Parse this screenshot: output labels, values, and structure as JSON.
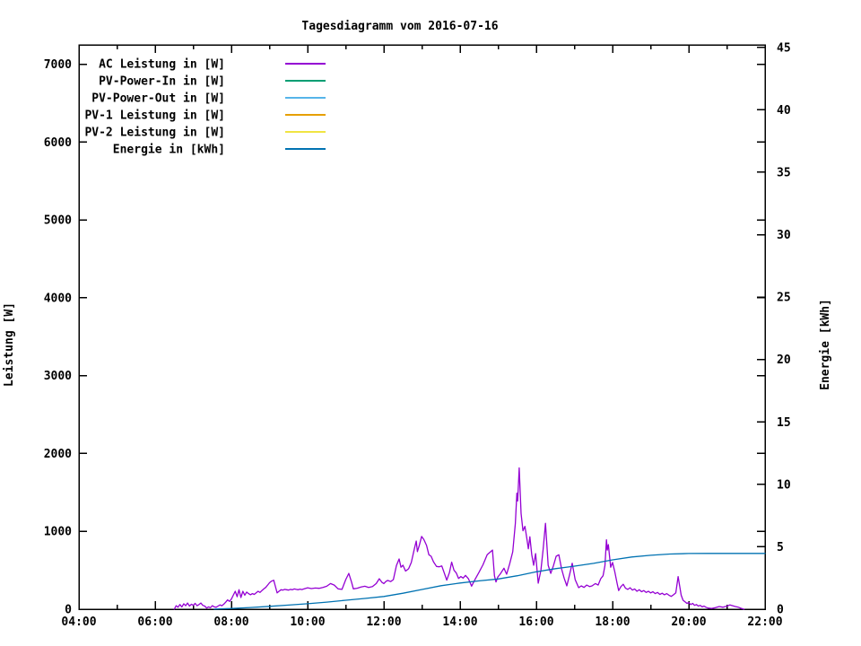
{
  "title": "Tagesdiagramm vom 2016-07-16",
  "legend": {
    "position": "top-left",
    "items": [
      {
        "label": "AC Leistung in [W]",
        "color": "#9400d3"
      },
      {
        "label": "PV-Power-In in [W]",
        "color": "#009e73"
      },
      {
        "label": "PV-Power-Out in [W]",
        "color": "#56b4e9"
      },
      {
        "label": "PV-1 Leistung in [W]",
        "color": "#e69f00"
      },
      {
        "label": "PV-2 Leistung in [W]",
        "color": "#f0e442"
      },
      {
        "label": "Energie in [kWh]",
        "color": "#0072b2"
      }
    ]
  },
  "chart_data": {
    "type": "line",
    "title": "Tagesdiagramm vom 2016-07-16",
    "grid": false,
    "x_axis": {
      "range_hours": [
        4,
        22
      ],
      "major_tick_hours": [
        4,
        6,
        8,
        10,
        12,
        14,
        16,
        18,
        20,
        22
      ],
      "major_tick_labels": [
        "04:00",
        "06:00",
        "08:00",
        "10:00",
        "12:00",
        "14:00",
        "16:00",
        "18:00",
        "20:00",
        "22:00"
      ],
      "minor_tick_hours": [
        5,
        7,
        9,
        11,
        13,
        15,
        17,
        19,
        21
      ]
    },
    "y1_axis": {
      "label": "Leistung [W]",
      "range": [
        0,
        7250
      ],
      "ticks": [
        0,
        1000,
        2000,
        3000,
        4000,
        5000,
        6000,
        7000
      ]
    },
    "y2_axis": {
      "label": "Energie [kWh]",
      "range": [
        0,
        45.2
      ],
      "ticks": [
        0,
        5,
        10,
        15,
        20,
        25,
        30,
        35,
        40,
        45
      ]
    },
    "series": [
      {
        "name": "AC Leistung in [W]",
        "color": "#9400d3",
        "axis": "y1",
        "points": [
          [
            6.5,
            0
          ],
          [
            6.55,
            45
          ],
          [
            6.6,
            25
          ],
          [
            6.65,
            60
          ],
          [
            6.7,
            30
          ],
          [
            6.75,
            70
          ],
          [
            6.8,
            45
          ],
          [
            6.85,
            80
          ],
          [
            6.9,
            40
          ],
          [
            6.95,
            65
          ],
          [
            7.0,
            50
          ],
          [
            7.05,
            75
          ],
          [
            7.1,
            45
          ],
          [
            7.15,
            60
          ],
          [
            7.2,
            80
          ],
          [
            7.25,
            50
          ],
          [
            7.3,
            40
          ],
          [
            7.35,
            15
          ],
          [
            7.4,
            30
          ],
          [
            7.45,
            20
          ],
          [
            7.5,
            45
          ],
          [
            7.55,
            30
          ],
          [
            7.6,
            25
          ],
          [
            7.65,
            40
          ],
          [
            7.7,
            55
          ],
          [
            7.75,
            45
          ],
          [
            7.8,
            65
          ],
          [
            7.85,
            90
          ],
          [
            7.9,
            120
          ],
          [
            7.95,
            100
          ],
          [
            8.0,
            130
          ],
          [
            8.05,
            180
          ],
          [
            8.1,
            230
          ],
          [
            8.15,
            160
          ],
          [
            8.2,
            250
          ],
          [
            8.25,
            150
          ],
          [
            8.3,
            230
          ],
          [
            8.35,
            180
          ],
          [
            8.4,
            220
          ],
          [
            8.45,
            200
          ],
          [
            8.5,
            185
          ],
          [
            8.55,
            200
          ],
          [
            8.6,
            190
          ],
          [
            8.65,
            210
          ],
          [
            8.7,
            230
          ],
          [
            8.75,
            215
          ],
          [
            8.8,
            240
          ],
          [
            8.85,
            260
          ],
          [
            8.9,
            280
          ],
          [
            8.95,
            310
          ],
          [
            9.0,
            340
          ],
          [
            9.05,
            360
          ],
          [
            9.11,
            372
          ],
          [
            9.15,
            300
          ],
          [
            9.2,
            210
          ],
          [
            9.25,
            230
          ],
          [
            9.3,
            250
          ],
          [
            9.35,
            245
          ],
          [
            9.4,
            255
          ],
          [
            9.45,
            250
          ],
          [
            9.5,
            245
          ],
          [
            9.55,
            255
          ],
          [
            9.6,
            250
          ],
          [
            9.65,
            260
          ],
          [
            9.7,
            255
          ],
          [
            9.75,
            250
          ],
          [
            9.8,
            258
          ],
          [
            9.85,
            252
          ],
          [
            9.9,
            260
          ],
          [
            9.95,
            268
          ],
          [
            10.0,
            275
          ],
          [
            10.1,
            265
          ],
          [
            10.2,
            272
          ],
          [
            10.3,
            268
          ],
          [
            10.4,
            280
          ],
          [
            10.5,
            295
          ],
          [
            10.6,
            330
          ],
          [
            10.7,
            310
          ],
          [
            10.8,
            262
          ],
          [
            10.9,
            255
          ],
          [
            11.0,
            380
          ],
          [
            11.08,
            460
          ],
          [
            11.15,
            350
          ],
          [
            11.2,
            262
          ],
          [
            11.3,
            270
          ],
          [
            11.4,
            285
          ],
          [
            11.5,
            295
          ],
          [
            11.6,
            280
          ],
          [
            11.7,
            290
          ],
          [
            11.8,
            330
          ],
          [
            11.88,
            392
          ],
          [
            11.95,
            345
          ],
          [
            12.0,
            330
          ],
          [
            12.05,
            355
          ],
          [
            12.1,
            370
          ],
          [
            12.18,
            355
          ],
          [
            12.25,
            380
          ],
          [
            12.33,
            560
          ],
          [
            12.4,
            645
          ],
          [
            12.45,
            540
          ],
          [
            12.5,
            565
          ],
          [
            12.57,
            490
          ],
          [
            12.65,
            520
          ],
          [
            12.72,
            600
          ],
          [
            12.8,
            776
          ],
          [
            12.85,
            876
          ],
          [
            12.88,
            740
          ],
          [
            12.93,
            820
          ],
          [
            12.99,
            935
          ],
          [
            13.05,
            895
          ],
          [
            13.12,
            820
          ],
          [
            13.18,
            700
          ],
          [
            13.24,
            680
          ],
          [
            13.3,
            610
          ],
          [
            13.38,
            550
          ],
          [
            13.45,
            545
          ],
          [
            13.52,
            555
          ],
          [
            13.58,
            470
          ],
          [
            13.65,
            373
          ],
          [
            13.72,
            470
          ],
          [
            13.78,
            605
          ],
          [
            13.84,
            500
          ],
          [
            13.9,
            465
          ],
          [
            13.96,
            395
          ],
          [
            14.02,
            420
          ],
          [
            14.08,
            400
          ],
          [
            14.14,
            435
          ],
          [
            14.22,
            390
          ],
          [
            14.3,
            296
          ],
          [
            14.4,
            390
          ],
          [
            14.5,
            480
          ],
          [
            14.6,
            570
          ],
          [
            14.71,
            700
          ],
          [
            14.85,
            760
          ],
          [
            14.9,
            430
          ],
          [
            14.94,
            350
          ],
          [
            14.99,
            415
          ],
          [
            15.05,
            450
          ],
          [
            15.15,
            527
          ],
          [
            15.22,
            450
          ],
          [
            15.3,
            584
          ],
          [
            15.38,
            738
          ],
          [
            15.45,
            1100
          ],
          [
            15.49,
            1490
          ],
          [
            15.51,
            1390
          ],
          [
            15.55,
            1815
          ],
          [
            15.6,
            1230
          ],
          [
            15.65,
            1007
          ],
          [
            15.7,
            1064
          ],
          [
            15.75,
            911
          ],
          [
            15.79,
            776
          ],
          [
            15.83,
            930
          ],
          [
            15.88,
            700
          ],
          [
            15.93,
            565
          ],
          [
            15.98,
            715
          ],
          [
            16.05,
            334
          ],
          [
            16.12,
            500
          ],
          [
            16.18,
            770
          ],
          [
            16.24,
            1103
          ],
          [
            16.28,
            800
          ],
          [
            16.31,
            565
          ],
          [
            16.38,
            460
          ],
          [
            16.45,
            560
          ],
          [
            16.52,
            680
          ],
          [
            16.59,
            700
          ],
          [
            16.66,
            520
          ],
          [
            16.73,
            400
          ],
          [
            16.8,
            300
          ],
          [
            16.87,
            440
          ],
          [
            16.94,
            590
          ],
          [
            17.02,
            380
          ],
          [
            17.11,
            277
          ],
          [
            17.18,
            300
          ],
          [
            17.25,
            280
          ],
          [
            17.32,
            310
          ],
          [
            17.4,
            290
          ],
          [
            17.46,
            300
          ],
          [
            17.55,
            330
          ],
          [
            17.62,
            310
          ],
          [
            17.69,
            392
          ],
          [
            17.75,
            430
          ],
          [
            17.8,
            560
          ],
          [
            17.84,
            891
          ],
          [
            17.86,
            760
          ],
          [
            17.89,
            830
          ],
          [
            17.95,
            540
          ],
          [
            18.0,
            600
          ],
          [
            18.06,
            480
          ],
          [
            18.12,
            330
          ],
          [
            18.16,
            240
          ],
          [
            18.22,
            290
          ],
          [
            18.28,
            320
          ],
          [
            18.34,
            270
          ],
          [
            18.4,
            255
          ],
          [
            18.46,
            275
          ],
          [
            18.52,
            245
          ],
          [
            18.58,
            260
          ],
          [
            18.64,
            230
          ],
          [
            18.7,
            250
          ],
          [
            18.76,
            225
          ],
          [
            18.82,
            240
          ],
          [
            18.88,
            215
          ],
          [
            18.94,
            230
          ],
          [
            19.0,
            210
          ],
          [
            19.06,
            225
          ],
          [
            19.12,
            200
          ],
          [
            19.18,
            215
          ],
          [
            19.24,
            190
          ],
          [
            19.3,
            205
          ],
          [
            19.36,
            185
          ],
          [
            19.42,
            200
          ],
          [
            19.48,
            180
          ],
          [
            19.54,
            165
          ],
          [
            19.6,
            185
          ],
          [
            19.66,
            210
          ],
          [
            19.72,
            420
          ],
          [
            19.76,
            300
          ],
          [
            19.8,
            180
          ],
          [
            19.85,
            115
          ],
          [
            19.9,
            95
          ],
          [
            19.95,
            75
          ],
          [
            20.0,
            85
          ],
          [
            20.05,
            60
          ],
          [
            20.1,
            75
          ],
          [
            20.15,
            50
          ],
          [
            20.2,
            60
          ],
          [
            20.25,
            40
          ],
          [
            20.3,
            50
          ],
          [
            20.35,
            30
          ],
          [
            20.4,
            40
          ],
          [
            20.45,
            25
          ],
          [
            20.5,
            15
          ],
          [
            20.6,
            10
          ],
          [
            20.7,
            20
          ],
          [
            20.8,
            35
          ],
          [
            20.9,
            25
          ],
          [
            21.0,
            40
          ],
          [
            21.08,
            55
          ],
          [
            21.15,
            45
          ],
          [
            21.22,
            35
          ],
          [
            21.3,
            25
          ],
          [
            21.38,
            10
          ],
          [
            21.45,
            0
          ]
        ]
      },
      {
        "name": "PV-Power-In in [W]",
        "color": "#009e73",
        "axis": "y1",
        "points": []
      },
      {
        "name": "PV-Power-Out in [W]",
        "color": "#56b4e9",
        "axis": "y1",
        "points": []
      },
      {
        "name": "PV-1 Leistung in [W]",
        "color": "#e69f00",
        "axis": "y1",
        "points": []
      },
      {
        "name": "PV-2 Leistung in [W]",
        "color": "#f0e442",
        "axis": "y1",
        "points": []
      },
      {
        "name": "Energie in [kWh]",
        "color": "#0072b2",
        "axis": "y2",
        "points": [
          [
            7.55,
            0.01
          ],
          [
            8.0,
            0.06
          ],
          [
            8.5,
            0.14
          ],
          [
            9.0,
            0.23
          ],
          [
            9.5,
            0.33
          ],
          [
            10.0,
            0.44
          ],
          [
            10.5,
            0.57
          ],
          [
            11.0,
            0.72
          ],
          [
            11.5,
            0.86
          ],
          [
            12.0,
            1.02
          ],
          [
            12.5,
            1.28
          ],
          [
            13.0,
            1.58
          ],
          [
            13.5,
            1.88
          ],
          [
            14.0,
            2.1
          ],
          [
            14.5,
            2.27
          ],
          [
            15.0,
            2.42
          ],
          [
            15.5,
            2.68
          ],
          [
            16.0,
            3.0
          ],
          [
            16.5,
            3.25
          ],
          [
            17.0,
            3.45
          ],
          [
            17.5,
            3.67
          ],
          [
            18.0,
            3.95
          ],
          [
            18.5,
            4.18
          ],
          [
            19.0,
            4.32
          ],
          [
            19.5,
            4.42
          ],
          [
            20.0,
            4.46
          ],
          [
            20.5,
            4.47
          ],
          [
            21.0,
            4.47
          ],
          [
            21.5,
            4.47
          ],
          [
            22.0,
            4.47
          ]
        ]
      }
    ]
  }
}
